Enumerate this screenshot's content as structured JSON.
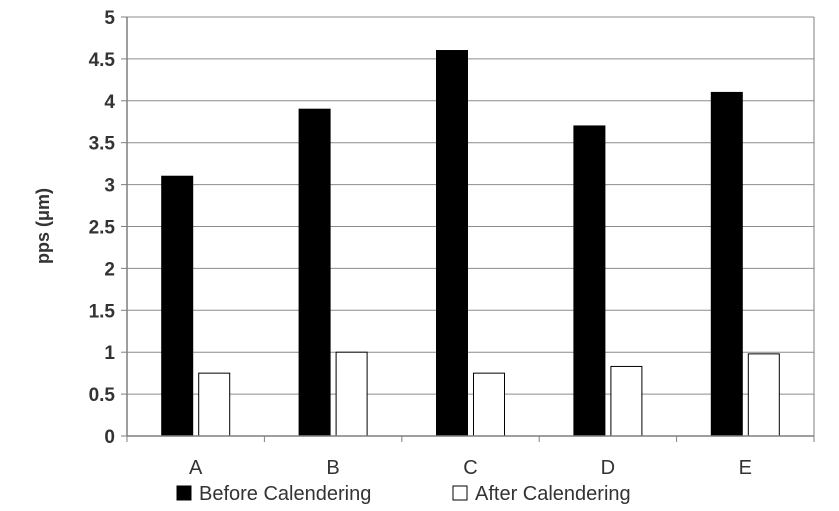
{
  "chart_data": {
    "type": "bar",
    "categories": [
      "A",
      "B",
      "C",
      "D",
      "E"
    ],
    "series": [
      {
        "name": "Before Calendering",
        "values": [
          3.1,
          3.9,
          4.6,
          3.7,
          4.1
        ],
        "color": "#000000"
      },
      {
        "name": "After Calendering",
        "values": [
          0.75,
          1.0,
          0.75,
          0.83,
          0.98
        ],
        "color": "#ffffff"
      }
    ],
    "ylabel": "pps (μm)",
    "xlabel": "",
    "ylim": [
      0,
      5
    ],
    "yticks": [
      "0",
      "0.5",
      "1",
      "1.5",
      "2",
      "2.5",
      "3",
      "3.5",
      "4",
      "4.5",
      "5"
    ],
    "grid": true,
    "legend_position": "bottom"
  }
}
